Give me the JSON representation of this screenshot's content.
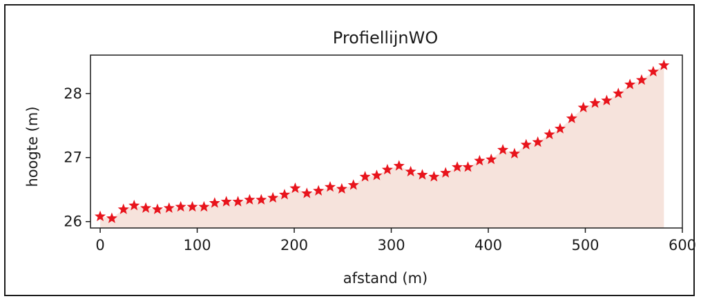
{
  "chart_data": {
    "type": "area",
    "title": "ProfiellijnWO",
    "xlabel": "afstand (m)",
    "ylabel": "hoogte (m)",
    "xlim": [
      -10,
      600
    ],
    "ylim": [
      25.9,
      28.6
    ],
    "xticks": [
      0,
      100,
      200,
      300,
      400,
      500,
      600
    ],
    "yticks": [
      26,
      27,
      28
    ],
    "grid": false,
    "marker": "star",
    "colors": {
      "marker": "#e8141c",
      "fill": "#f6e3dc",
      "line": "#1a1a1a"
    },
    "x": [
      0,
      12,
      24,
      35,
      47,
      59,
      71,
      83,
      95,
      107,
      118,
      130,
      142,
      154,
      166,
      178,
      190,
      201,
      213,
      225,
      237,
      249,
      261,
      273,
      285,
      296,
      308,
      320,
      332,
      344,
      356,
      368,
      379,
      391,
      403,
      415,
      427,
      439,
      451,
      463,
      474,
      486,
      498,
      510,
      522,
      534,
      546,
      558,
      570,
      581
    ],
    "y": [
      26.08,
      26.05,
      26.19,
      26.25,
      26.21,
      26.19,
      26.21,
      26.23,
      26.23,
      26.23,
      26.29,
      26.31,
      26.31,
      26.34,
      26.34,
      26.37,
      26.42,
      26.52,
      26.44,
      26.48,
      26.54,
      26.51,
      26.57,
      26.7,
      26.72,
      26.81,
      26.87,
      26.78,
      26.73,
      26.7,
      26.76,
      26.85,
      26.85,
      26.95,
      26.97,
      27.12,
      27.06,
      27.2,
      27.24,
      27.36,
      27.45,
      27.61,
      27.78,
      27.85,
      27.89,
      28.0,
      28.14,
      28.21,
      28.34,
      28.44
    ]
  }
}
